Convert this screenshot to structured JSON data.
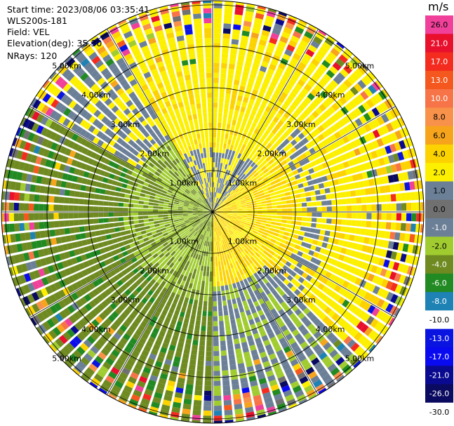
{
  "header": {
    "start_time": "Start time: 2023/08/06 03:35:41",
    "site": "WLS200s-181",
    "field": "Field: VEL",
    "elevation": "Elevation(deg): 35.30",
    "nrays": "NRays: 120"
  },
  "colorbar": {
    "unit": "m/s",
    "levels": [
      {
        "label": "26.0",
        "color": "#f0409a",
        "text": "#000000"
      },
      {
        "label": "21.0",
        "color": "#e8102c",
        "text": "#ffffff"
      },
      {
        "label": "17.0",
        "color": "#f42c20",
        "text": "#ffffff"
      },
      {
        "label": "13.0",
        "color": "#f4581e",
        "text": "#ffffff"
      },
      {
        "label": "10.0",
        "color": "#f67448",
        "text": "#ffffff"
      },
      {
        "label": "8.0",
        "color": "#f8924a",
        "text": "#000000"
      },
      {
        "label": "6.0",
        "color": "#f6a41c",
        "text": "#000000"
      },
      {
        "label": "4.0",
        "color": "#fcd200",
        "text": "#000000"
      },
      {
        "label": "2.0",
        "color": "#fcf000",
        "text": "#000000"
      },
      {
        "label": "1.0",
        "color": "#6b7f97",
        "text": "#000000"
      },
      {
        "label": "0.0",
        "color": "#707070",
        "text": "#000000"
      },
      {
        "label": "-1.0",
        "color": "#6b7f97",
        "text": "#ffffff"
      },
      {
        "label": "-2.0",
        "color": "#a0cc30",
        "text": "#000000"
      },
      {
        "label": "-4.0",
        "color": "#6e8a20",
        "text": "#ffffff"
      },
      {
        "label": "-6.0",
        "color": "#228a22",
        "text": "#ffffff"
      },
      {
        "label": "-8.0",
        "color": "#1e82b4",
        "text": "#ffffff"
      },
      {
        "label": "-10.0",
        "color": "#ffffff",
        "text": "#000000"
      },
      {
        "label": "-13.0",
        "color": "#0a14e0",
        "text": "#ffffff"
      },
      {
        "label": "-17.0",
        "color": "#0a0af0",
        "text": "#ffffff"
      },
      {
        "label": "-21.0",
        "color": "#0a0a90",
        "text": "#ffffff"
      },
      {
        "label": "-26.0",
        "color": "#0a0a60",
        "text": "#ffffff"
      },
      {
        "label": "-30.0",
        "color": "#ffffff",
        "text": "#000000"
      }
    ]
  },
  "chart_data": {
    "type": "heatmap",
    "description_free": true,
    "field": "VEL",
    "nrays": 120,
    "range_ring_labels": [
      "1.00km",
      "2.00km",
      "3.00km",
      "4.00km",
      "5.00km"
    ],
    "range_rings_km": [
      1,
      2,
      3,
      4,
      5
    ],
    "max_range_km": 5.1,
    "azimuth_spokes_deg": [
      0,
      30,
      60,
      90,
      120,
      150,
      180,
      210,
      240,
      270,
      300,
      330
    ],
    "sectors_deg_to_velocity_band": [
      {
        "az_from": 330,
        "az_to": 45,
        "velocity": "2.0 to 4.0"
      },
      {
        "az_from": 45,
        "az_to": 135,
        "velocity": "2.0 to 6.0"
      },
      {
        "az_from": 135,
        "az_to": 180,
        "velocity": "-1.0 to 1.0"
      },
      {
        "az_from": 180,
        "az_to": 300,
        "velocity": "-4.0 to -2.0"
      },
      {
        "az_from": 300,
        "az_to": 330,
        "velocity": "-1.0 to 1.0"
      }
    ]
  }
}
